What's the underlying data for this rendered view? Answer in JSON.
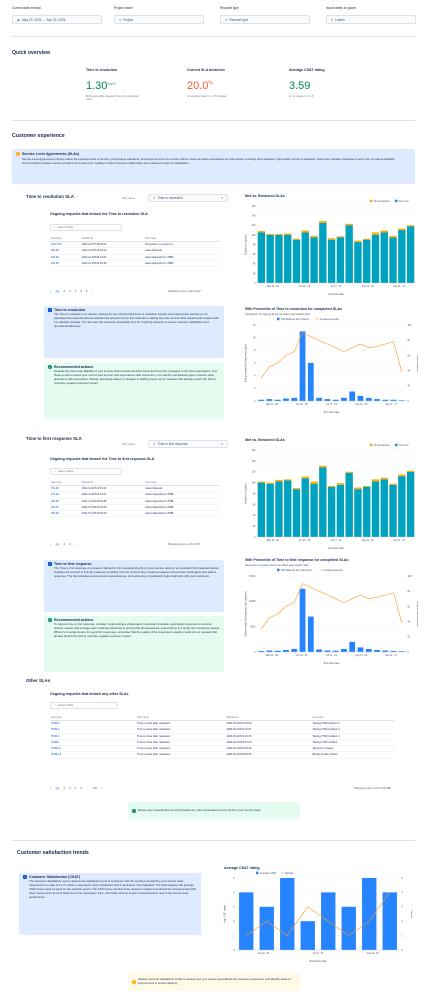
{
  "filters": {
    "date": {
      "label": "Current date interval",
      "value": "May 22, 2023 → Sep 22, 2023"
    },
    "project": {
      "label": "Project name",
      "value": "Project"
    },
    "request": {
      "label": "Request type",
      "value": "Request type"
    },
    "labels": {
      "label": "Issue labels to ignore",
      "value": "Labels"
    }
  },
  "overview": {
    "title": "Quick overview",
    "ttr": {
      "title": "Time to resolution",
      "value": "1.30",
      "unit": "day(s)",
      "sub": "90th percentile elapsed time for completed SLAs"
    },
    "breach": {
      "title": "Current SLA breaches",
      "value": "20.0",
      "unit": "%",
      "sub": "of ongoing SLAs vs. <5% target"
    },
    "csat": {
      "title": "Average CSAT rating",
      "value": "3.59",
      "sub": "on a range of 1 to 5"
    }
  },
  "cx": {
    "title": "Customer experience",
    "sla_info": {
      "title": "Service Level Agreements (SLAs)",
      "text": "Service Level Agreements (SLAs) outline the expected level of service, performance standards, and response times for service offered. SLAs set clear expectations for both parties, ensuring that consistent, high-quality service is delivered. SLAs help maintain transparency and trust, as well as facilitate communication between service providers and customers, leading to better business relationships and enhanced customer satisfaction."
    }
  },
  "ttr_section": {
    "title": "Time to resolution SLA",
    "sla_label": "SLA name",
    "sla_value": "Time to resolution",
    "table_title": "Ongoing requests that breach the Time to resolution SLA",
    "search": "Search table",
    "headers": [
      "Issue key",
      "Started at",
      "Summary"
    ],
    "rows": [
      [
        "FASI-179",
        "2022-11-07T18:20:02",
        "Tai Larsen is moving to I..."
      ],
      [
        "FSI-48",
        "2022-11-02T19:51:23",
        "Asset disposal"
      ],
      [
        "FSI-49",
        "2022-11-02T20:14:21",
        "Asset disposal for LTMB..."
      ],
      [
        "FSI-50",
        "2022-11-04T23:30:48",
        "Asset disposal for LTMB..."
      ]
    ],
    "pages": [
      "1",
      "2",
      "3",
      "4",
      "5",
      "6"
    ],
    "rows_text": "Showing rows 1–20 of 117",
    "info": {
      "title": "Time to resolution",
      "text": "The Time to resolution of a request, defined by your service desk Time to resolution Service Level Agreement settings (or an equivalent SLA selected above) indicates the amount of time the customer is waiting from the moment their request was created until it is officially resolved. The SLA sets the maximum acceptable time for resolving requests to ensure customer satisfaction and operational efficiency."
    },
    "actions": {
      "title": "Recommended actions",
      "text": "Evaluate the trend and reliability of your service desk's actual resolution times and how they compares to the SLA expectations. Use these trends to review your current SLA and set new expectations with customers, or to identify and address gaps in service desk operations with automation, training, knowledge bases or changes to staffing levels. Act on requests that already breach the SLA to minimize negative customer impact."
    }
  },
  "ttfr_section": {
    "title": "Time to first response SLA",
    "sla_label": "SLA name",
    "sla_value": "Time to first response",
    "table_title": "Ongoing requests that breach the Time to first response SLA",
    "search": "Search table",
    "headers": [
      "Issue key",
      "Started at",
      "Summary"
    ],
    "rows": [
      [
        "FSI-48",
        "2022-11-02T19:51:23",
        "Asset disposal"
      ],
      [
        "FSI-49",
        "2022-11-02T20:14:21",
        "Asset disposal for LTMB..."
      ],
      [
        "FSI-50",
        "2022-11-04T23:30:48",
        "Asset disposal for LTMB..."
      ],
      [
        "FSI-51",
        "2023-07-29T20:54:23",
        "Asset disposal for LTMB..."
      ],
      [
        "FSI-52",
        "2023-07-29T20:54:23",
        "Asset disposal for LTMB..."
      ]
    ],
    "pages": [
      "1",
      "2",
      "3"
    ],
    "rows_text": "Showing rows 1–20 of 60",
    "info": {
      "title": "Time to first response",
      "text": "The Time to first response of a request, defined by the corresponding SLA in your service desk (or an equivalent SLA selected above) indicates the amount of time the customer is waiting from the moment they created a request until a service desk agent sent back a response. This SLA indicates service desk responsiveness, and achieving it consistently helps build trust with your customers."
    },
    "actions": {
      "title": "Recommended actions",
      "text": "To improve time to first response, consider implementing a virtual agent to provide immediate, automated responses to common queries. Assess and manage team workload effectively to ensure that all requests are responded to in a timely and consistent manner. While it's important to aim for quick first responses, remember that the quality of the response is equally crucial. Act on requests that already breach the SLA to minimize negative customer impact."
    }
  },
  "other": {
    "title": "Other SLAs",
    "table_title": "Ongoing requests that breach any other SLAs",
    "search": "Search table",
    "headers": [
      "Issue key",
      "SLA name",
      "Started at",
      "Summary"
    ],
    "rows": [
      [
        "ITSM-5",
        "Time to close after resolution",
        "2020-03-20T21:15:53",
        "Testing ITSM Incident 5"
      ],
      [
        "ITSM-4",
        "Time to close after resolution",
        "2020-03-20T21:16:07",
        "Testing ITSM Incident 4"
      ],
      [
        "ITSM-3",
        "Time to close after resolution",
        "2020-03-20T21:16:25",
        "Testing ITSM Incident 3"
      ],
      [
        "ITSM-1",
        "Time to close after resolution",
        "2020-04-10T20:27:00",
        "Testing ITSM Incident"
      ],
      [
        "ITSM-11",
        "Time to close after resolution",
        "2020-04-10T20:29:18",
        "Testing Inc Queue"
      ],
      [
        "ITSM-14",
        "Time to close after resolution",
        "2020-04-10T20:30:26",
        "Bandly server is down"
      ]
    ],
    "pages": [
      "1",
      "2",
      "3",
      "4",
      "5",
      "...",
      "715"
    ],
    "rows_text": "Showing rows 1–20 of 14,286",
    "note": "Review any requests that currently breach any other expectations set by SLAs in your service desk."
  },
  "csat_section": {
    "title": "Customer satisfaction trends",
    "info": {
      "title": "Customer Satisfaction (CSAT)",
      "text": "The Customer Satisfaction score captures the satisfaction level of customers with the services provided by your service desk, measured on a scale of 1 to 5, where 1 represents 'Very Unsatisfied' and 5 represents 'Very Satisfied'. The chart displays the average CSAT score week by week for the selected period. The CSAT score should not be viewed in isolation but should be complemented with other metrics such as First Response Time, Resolution Time, and Ticket Volume to get a comprehensive view of the service desk performance."
    },
    "note": "Assess customer satisfaction trends to assess how your service level affects the customer experience, and identify areas of improvement in service delivery."
  },
  "chart_data": [
    {
      "type": "bar",
      "title": "Met vs. Breached SLAs",
      "xlabel": "SLA start date",
      "ylabel": "Number of requests",
      "ylim": [
        0,
        160
      ],
      "yticks": [
        "0",
        "20",
        "40",
        "60",
        "80",
        "100",
        "120",
        "140",
        "160"
      ],
      "xticks": [
        "May 22 - 28",
        "Jun 19 - 25",
        "Jul 17 - 23",
        "Aug 14 - 20",
        "Sep 11 - 17"
      ],
      "series": [
        {
          "name": "SLA breached",
          "color": "#ffab00",
          "values": [
            3,
            2,
            2,
            3,
            2,
            4,
            3,
            4,
            3,
            2,
            3,
            3,
            2,
            5,
            4,
            3,
            3,
            2
          ]
        },
        {
          "name": "SLA met",
          "color": "#00a3bf",
          "values": [
            105,
            100,
            100,
            100,
            90,
            105,
            95,
            125,
            90,
            95,
            120,
            85,
            90,
            100,
            105,
            95,
            110,
            118
          ]
        }
      ]
    },
    {
      "type": "bar",
      "title": "90th Percentile of Time to resolution for completed SLAs",
      "subtitle": "Completion of ongoing SLAs can affect past weeks' data",
      "xlabel": "SLA start date",
      "ylabel": "90th percentile Resolution time (days)",
      "y2label": "Created requests",
      "ylim": [
        0,
        12
      ],
      "yticks": [
        "0",
        "2",
        "4",
        "6",
        "8",
        "10",
        "12"
      ],
      "y2ticks": [
        "0",
        "20",
        "40",
        "60",
        "80",
        "100"
      ],
      "xticks": [
        "May 22 - 28",
        "Jun 19 - 25",
        "Jul 17 - 23",
        "Aug 14 - 20",
        "Sep 11 - 17"
      ],
      "series": [
        {
          "name": "P90 Elapsed time (Days)",
          "color": "#2684ff",
          "values": [
            0.2,
            0.3,
            0.2,
            0.4,
            0.5,
            11,
            6,
            0.5,
            0.3,
            0.2,
            0.5,
            1.5,
            0.8,
            0.5,
            0.3,
            0.2,
            0.2,
            0.1
          ]
        },
        {
          "name": "Created requests",
          "color": "#ff991f",
          "values": [
            30,
            45,
            50,
            60,
            65,
            90,
            85,
            80,
            75,
            70,
            65,
            70,
            75,
            70,
            72,
            75,
            78,
            38
          ]
        }
      ]
    },
    {
      "type": "bar",
      "title": "Met vs. Breached SLAs",
      "xlabel": "SLA start date",
      "ylabel": "Number of requests",
      "ylim": [
        0,
        160
      ],
      "yticks": [
        "0",
        "20",
        "40",
        "60",
        "80",
        "100",
        "120",
        "140",
        "160"
      ],
      "xticks": [
        "May 22 - 28",
        "Jun 19 - 25",
        "Jul 17 - 23",
        "Aug 14 - 20",
        "Sep 11 - 17"
      ],
      "series": [
        {
          "name": "SLA breached",
          "color": "#ffab00",
          "values": [
            2,
            2,
            3,
            2,
            2,
            3,
            4,
            3,
            2,
            3,
            2,
            3,
            2,
            4,
            3,
            2,
            3,
            2
          ]
        },
        {
          "name": "SLA met",
          "color": "#00a3bf",
          "values": [
            100,
            98,
            102,
            104,
            88,
            108,
            98,
            128,
            92,
            96,
            118,
            88,
            92,
            102,
            106,
            96,
            112,
            120
          ]
        }
      ]
    },
    {
      "type": "bar",
      "title": "90th Percentile of Time to first response for completed SLAs",
      "subtitle": "Response to ongoing SLAs can affect past weeks' data",
      "xlabel": "SLA start date",
      "ylabel": "90th percentile First response time (minutes)",
      "y2label": "Requests with responses",
      "ylim": [
        0,
        15000
      ],
      "yticks": [
        "0",
        "5000",
        "10000",
        "15000"
      ],
      "y2ticks": [
        "0",
        "20",
        "40",
        "60",
        "80",
        "100"
      ],
      "xticks": [
        "May 22 - 28",
        "Jun 19 - 25",
        "Jul 17 - 23",
        "Aug 14 - 20",
        "Sep 11 - 17"
      ],
      "series": [
        {
          "name": "P90 Elapsed time (Minutes)",
          "color": "#2684ff",
          "values": [
            200,
            300,
            250,
            400,
            600,
            12500,
            7000,
            500,
            300,
            250,
            600,
            2000,
            900,
            600,
            400,
            300,
            200,
            150
          ]
        },
        {
          "name": "Created requests",
          "color": "#ff991f",
          "values": [
            30,
            45,
            50,
            60,
            65,
            90,
            85,
            80,
            75,
            70,
            65,
            70,
            75,
            70,
            72,
            75,
            78,
            38
          ]
        }
      ]
    },
    {
      "type": "bar",
      "title": "Average CSAT rating",
      "xlabel": "Resolution date",
      "ylabel": "Avg. CSAT rating",
      "y2label": "Ratings",
      "ylim": [
        0,
        5
      ],
      "yticks": [
        "0",
        "1",
        "2",
        "3",
        "4",
        "5"
      ],
      "y2ticks": [
        "0",
        "1",
        "2",
        "3",
        "4",
        "5"
      ],
      "xticks": [
        "Jun 19 - 25",
        "Jul 17 - 23",
        "Aug 14 - 20"
      ],
      "series": [
        {
          "name": "Average CSAT",
          "color": "#2684ff",
          "values": [
            4,
            3,
            5,
            2,
            4,
            3,
            5,
            4
          ]
        },
        {
          "name": "Ratings",
          "color": "#ff991f",
          "values": [
            1,
            2,
            1,
            3,
            2,
            1,
            2,
            4
          ]
        }
      ]
    }
  ]
}
